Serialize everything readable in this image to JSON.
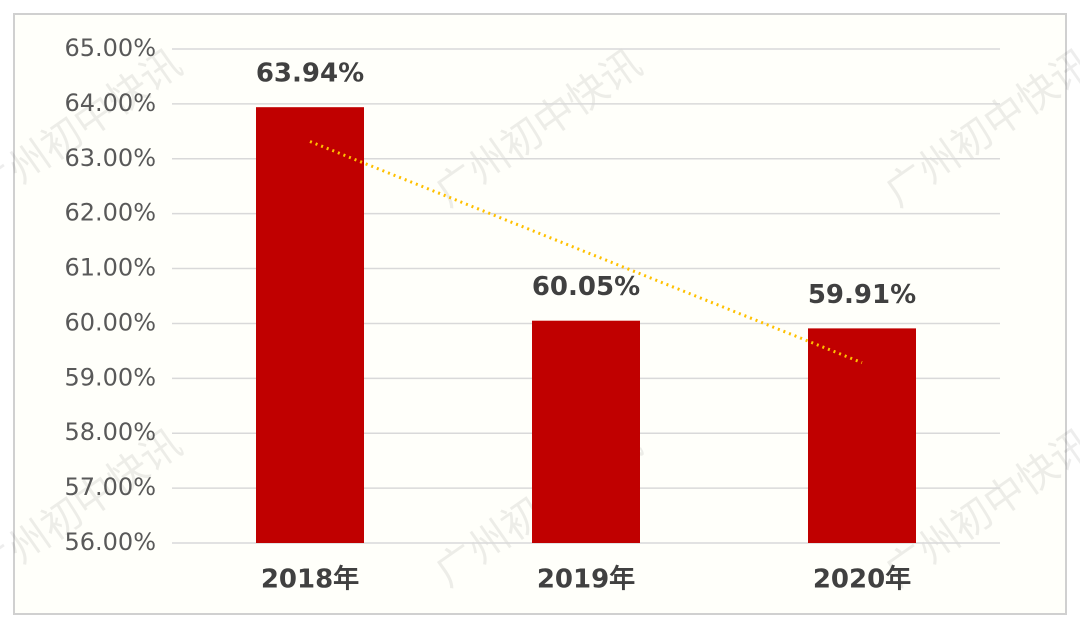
{
  "chart_data": {
    "type": "bar",
    "categories": [
      "2018年",
      "2019年",
      "2020年"
    ],
    "values": [
      63.94,
      60.05,
      59.91
    ],
    "value_labels": [
      "63.94%",
      "60.05%",
      "59.91%"
    ],
    "color": "#c00000",
    "ylim": [
      56,
      65
    ],
    "yticks": [
      {
        "value": 56,
        "label": "56.00%"
      },
      {
        "value": 57,
        "label": "57.00%"
      },
      {
        "value": 58,
        "label": "58.00%"
      },
      {
        "value": 59,
        "label": "59.00%"
      },
      {
        "value": 60,
        "label": "60.00%"
      },
      {
        "value": 61,
        "label": "61.00%"
      },
      {
        "value": 62,
        "label": "62.00%"
      },
      {
        "value": 63,
        "label": "63.00%"
      },
      {
        "value": 64,
        "label": "64.00%"
      },
      {
        "value": 65,
        "label": "65.00%"
      }
    ],
    "grid": true,
    "trendline": {
      "type": "linear",
      "color": "#ffc000"
    },
    "watermark": "广州初中快讯"
  }
}
